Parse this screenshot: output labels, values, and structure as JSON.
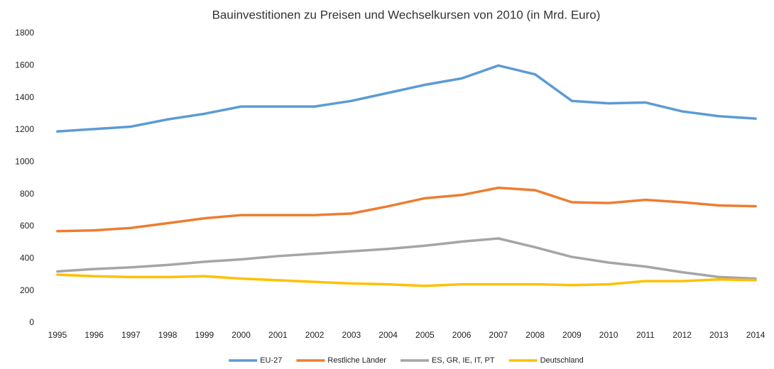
{
  "chart_data": {
    "type": "line",
    "title": "Bauinvestitionen zu Preisen und Wechselkursen von 2010 (in Mrd. Euro)",
    "categories": [
      "1995",
      "1996",
      "1997",
      "1998",
      "1999",
      "2000",
      "2001",
      "2002",
      "2003",
      "2004",
      "2005",
      "2006",
      "2007",
      "2008",
      "2009",
      "2010",
      "2011",
      "2012",
      "2013",
      "2014"
    ],
    "series": [
      {
        "name": "EU-27",
        "color": "#5b9bd5",
        "values": [
          1190,
          1205,
          1220,
          1265,
          1300,
          1345,
          1345,
          1345,
          1380,
          1430,
          1480,
          1520,
          1600,
          1545,
          1380,
          1365,
          1370,
          1315,
          1285,
          1270
        ]
      },
      {
        "name": "Restliche Länder",
        "color": "#ed7d31",
        "values": [
          570,
          575,
          590,
          620,
          650,
          670,
          670,
          670,
          680,
          725,
          775,
          795,
          840,
          825,
          750,
          745,
          765,
          750,
          730,
          725
        ]
      },
      {
        "name": "ES, GR, IE, IT, PT",
        "color": "#a5a5a5",
        "values": [
          320,
          335,
          345,
          360,
          380,
          395,
          415,
          430,
          445,
          460,
          480,
          505,
          525,
          470,
          410,
          375,
          350,
          315,
          285,
          275
        ]
      },
      {
        "name": "Deutschland",
        "color": "#ffc000",
        "values": [
          300,
          290,
          285,
          285,
          290,
          275,
          265,
          255,
          245,
          240,
          230,
          240,
          240,
          240,
          235,
          240,
          260,
          260,
          270,
          265
        ]
      }
    ],
    "ylim": [
      0,
      1800
    ],
    "yticks": [
      0,
      200,
      400,
      600,
      800,
      1000,
      1200,
      1400,
      1600,
      1800
    ],
    "grid": false,
    "legend": "bottom"
  }
}
